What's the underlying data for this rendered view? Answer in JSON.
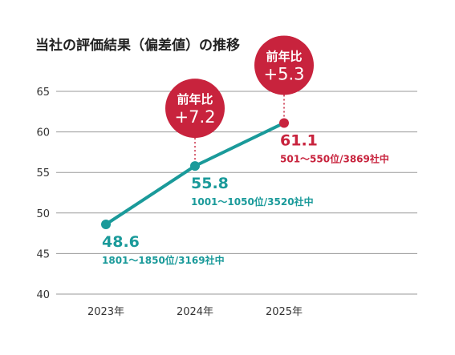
{
  "colors": {
    "line": "#1a9a9a",
    "accent": "#c8233d",
    "grid": "#9a9a9a",
    "text": "#333333"
  },
  "chart_data": {
    "type": "line",
    "title": "当社の評価結果（偏差値）の推移",
    "xlabel": "",
    "ylabel": "",
    "categories": [
      "2023年",
      "2024年",
      "2025年"
    ],
    "ylim": [
      40,
      65
    ],
    "yticks": [
      40,
      45,
      50,
      55,
      60,
      65
    ],
    "grid": true,
    "series": [
      {
        "values": [
          48.6,
          55.8,
          61.1
        ]
      }
    ],
    "point_labels": [
      {
        "value": "48.6",
        "rank": "1801～1850位/3169社中"
      },
      {
        "value": "55.8",
        "rank": "1001～1050位/3520社中"
      },
      {
        "value": "61.1",
        "rank": "501～550位/3869社中"
      }
    ],
    "annotations": [
      {
        "category": "2024年",
        "title": "前年比",
        "delta": "+7.2"
      },
      {
        "category": "2025年",
        "title": "前年比",
        "delta": "+5.3"
      }
    ]
  }
}
